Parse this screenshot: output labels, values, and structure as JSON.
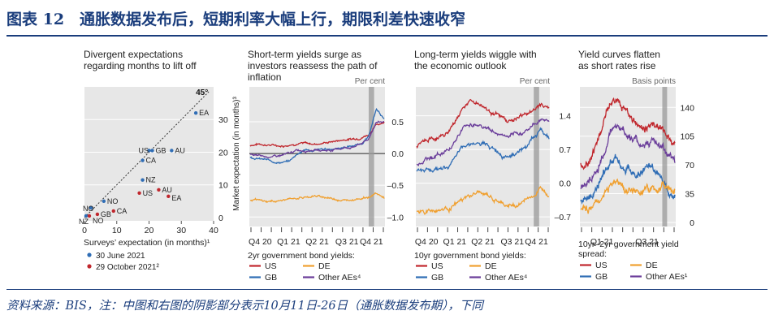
{
  "header": {
    "title": "图表 12　通胀数据发布后，短期利率大幅上行，期限利差快速收窄"
  },
  "footnote": {
    "text": "资料来源：BIS，注：中图和右图的阴影部分表示10月11日-26日（通胀数据发布期），下同"
  },
  "colors": {
    "navy": "#1a3d7c",
    "red": "#c0272d",
    "blue": "#2f6db5",
    "orange": "#f0a030",
    "purple": "#6a3d9a",
    "grey": "#a0a0a0",
    "panel_bg": "#e7e7e7"
  },
  "chart_data": [
    {
      "type": "scatter",
      "title": "Divergent expectations regarding months to lift off",
      "xlabel": "Surveys’ expectation (in months)¹",
      "ylabel": "Market expectation (in months)³",
      "xlim": [
        0,
        40
      ],
      "ylim": [
        -1,
        40
      ],
      "xticks": [
        "0",
        "10",
        "20",
        "30",
        "40"
      ],
      "yticks": [
        "0",
        "10",
        "20",
        "30"
      ],
      "diagonal_label": "45°",
      "legend": [
        "30 June 2021",
        "29 October 2021²"
      ],
      "series": [
        {
          "name": "30 June 2021",
          "points": [
            {
              "label": "EA",
              "x": 34.5,
              "y": 32
            },
            {
              "label": "US",
              "x": 20,
              "y": 20.5
            },
            {
              "label": "GB",
              "x": 21,
              "y": 20.5
            },
            {
              "label": "AU",
              "x": 27,
              "y": 20.5
            },
            {
              "label": "CA",
              "x": 18,
              "y": 17.5
            },
            {
              "label": "NZ",
              "x": 18,
              "y": 11.5
            },
            {
              "label": "NO",
              "x": 6,
              "y": 5
            },
            {
              "label": "NO",
              "x": 2,
              "y": 3
            },
            {
              "label": "NZ",
              "x": 0.5,
              "y": 0.5
            }
          ]
        },
        {
          "name": "29 October 2021²",
          "points": [
            {
              "label": "US",
              "x": 17,
              "y": 7.5
            },
            {
              "label": "AU",
              "x": 23,
              "y": 8.5
            },
            {
              "label": "EA",
              "x": 26,
              "y": 6.5
            },
            {
              "label": "CA",
              "x": 9,
              "y": 2
            },
            {
              "label": "GB",
              "x": 4,
              "y": 1
            },
            {
              "label": "NO",
              "x": 1.5,
              "y": 0.5
            }
          ]
        }
      ]
    },
    {
      "type": "line",
      "title": "Short-term yields surge as investors reassess the path of inflation",
      "unit_label": "Per cent",
      "yticks": [
        0.5,
        0.0,
        -0.5,
        -1.0
      ],
      "ytick_labels": [
        "0.5",
        "0.0",
        "–0.5",
        "–1.0"
      ],
      "ylim": [
        -1.15,
        1.05
      ],
      "xticks": [
        "Q4 20",
        "Q1 21",
        "Q2 21",
        "Q3 21",
        "Q4 21"
      ],
      "shaded_period": "11–26 October 2021",
      "legend_title": "2yr government bond yields:",
      "legend": [
        "US",
        "DE",
        "GB",
        "Other AEs⁴"
      ],
      "series": [
        {
          "name": "US",
          "values": [
            0.13,
            0.15,
            0.14,
            0.13,
            0.12,
            0.14,
            0.16,
            0.16,
            0.15,
            0.16,
            0.18,
            0.2,
            0.22,
            0.23,
            0.25,
            0.3,
            0.45,
            0.5
          ]
        },
        {
          "name": "GB",
          "values": [
            -0.05,
            -0.08,
            -0.1,
            -0.13,
            -0.14,
            -0.12,
            0.0,
            0.06,
            0.04,
            0.06,
            0.07,
            0.08,
            0.1,
            0.12,
            0.15,
            0.25,
            0.7,
            0.55
          ]
        },
        {
          "name": "Other AEs⁴",
          "values": [
            -0.02,
            -0.04,
            -0.05,
            -0.05,
            -0.03,
            0.0,
            0.05,
            0.05,
            0.06,
            0.05,
            0.05,
            0.07,
            0.09,
            0.1,
            0.15,
            0.22,
            0.5,
            0.5
          ]
        },
        {
          "name": "DE",
          "values": [
            -0.73,
            -0.74,
            -0.76,
            -0.75,
            -0.74,
            -0.72,
            -0.7,
            -0.69,
            -0.67,
            -0.68,
            -0.7,
            -0.72,
            -0.74,
            -0.72,
            -0.7,
            -0.69,
            -0.63,
            -0.7
          ]
        }
      ]
    },
    {
      "type": "line",
      "title": "Long-term yields wiggle with the economic outlook",
      "unit_label": "Per cent",
      "yticks": [
        1.4,
        0.7,
        0.0,
        -0.7
      ],
      "ytick_labels": [
        "1.4",
        "0.7",
        "0.0",
        "–0.7"
      ],
      "ylim": [
        -0.9,
        2.0
      ],
      "xticks": [
        "Q4 20",
        "Q1 21",
        "Q2 21",
        "Q3 21",
        "Q4 21"
      ],
      "shaded_period": "11–26 October 2021",
      "legend_title": "10yr government bond yields:",
      "legend": [
        "US",
        "DE",
        "GB",
        "Other AEs⁴"
      ],
      "series": [
        {
          "name": "US",
          "values": [
            0.75,
            0.85,
            0.92,
            0.95,
            1.05,
            1.3,
            1.6,
            1.7,
            1.65,
            1.55,
            1.45,
            1.35,
            1.3,
            1.35,
            1.45,
            1.5,
            1.65,
            1.55
          ]
        },
        {
          "name": "Other AEs⁴",
          "values": [
            0.4,
            0.5,
            0.55,
            0.6,
            0.7,
            0.9,
            1.15,
            1.25,
            1.2,
            1.15,
            1.05,
            1.0,
            0.95,
            1.0,
            1.1,
            1.2,
            1.35,
            1.3
          ]
        },
        {
          "name": "GB",
          "values": [
            0.25,
            0.3,
            0.3,
            0.28,
            0.35,
            0.5,
            0.8,
            0.85,
            0.8,
            0.78,
            0.7,
            0.6,
            0.6,
            0.65,
            0.75,
            0.95,
            1.1,
            0.95
          ]
        },
        {
          "name": "DE",
          "values": [
            -0.6,
            -0.58,
            -0.56,
            -0.55,
            -0.52,
            -0.45,
            -0.35,
            -0.25,
            -0.2,
            -0.25,
            -0.35,
            -0.45,
            -0.48,
            -0.45,
            -0.35,
            -0.25,
            -0.12,
            -0.2
          ]
        }
      ]
    },
    {
      "type": "line",
      "title": "Yield curves flatten as short rates rise",
      "unit_label": "Basis points",
      "yticks": [
        140,
        105,
        70,
        35,
        0
      ],
      "ytick_labels": [
        "140",
        "105",
        "70",
        "35",
        "0"
      ],
      "ylim": [
        -5,
        165
      ],
      "xticks": [
        "Q1 21",
        "Q3 21"
      ],
      "shaded_period": "11–26 October 2021",
      "legend_title": "10yr–2yr government yield spread:",
      "legend": [
        "US",
        "DE",
        "GB",
        "Other AEs¹"
      ],
      "series": [
        {
          "name": "US",
          "values": [
            70,
            75,
            85,
            100,
            125,
            145,
            150,
            140,
            135,
            125,
            115,
            115,
            120,
            120,
            110,
            105,
            95
          ]
        },
        {
          "name": "Other AEs¹",
          "values": [
            45,
            48,
            55,
            65,
            85,
            110,
            120,
            115,
            105,
            100,
            95,
            95,
            100,
            95,
            90,
            75,
            75
          ]
        },
        {
          "name": "GB",
          "values": [
            25,
            30,
            35,
            45,
            60,
            75,
            80,
            70,
            65,
            60,
            60,
            65,
            65,
            60,
            55,
            40,
            35
          ]
        },
        {
          "name": "DE",
          "values": [
            15,
            17,
            20,
            25,
            35,
            45,
            50,
            45,
            40,
            35,
            35,
            40,
            40,
            42,
            45,
            40,
            38
          ]
        }
      ]
    }
  ]
}
